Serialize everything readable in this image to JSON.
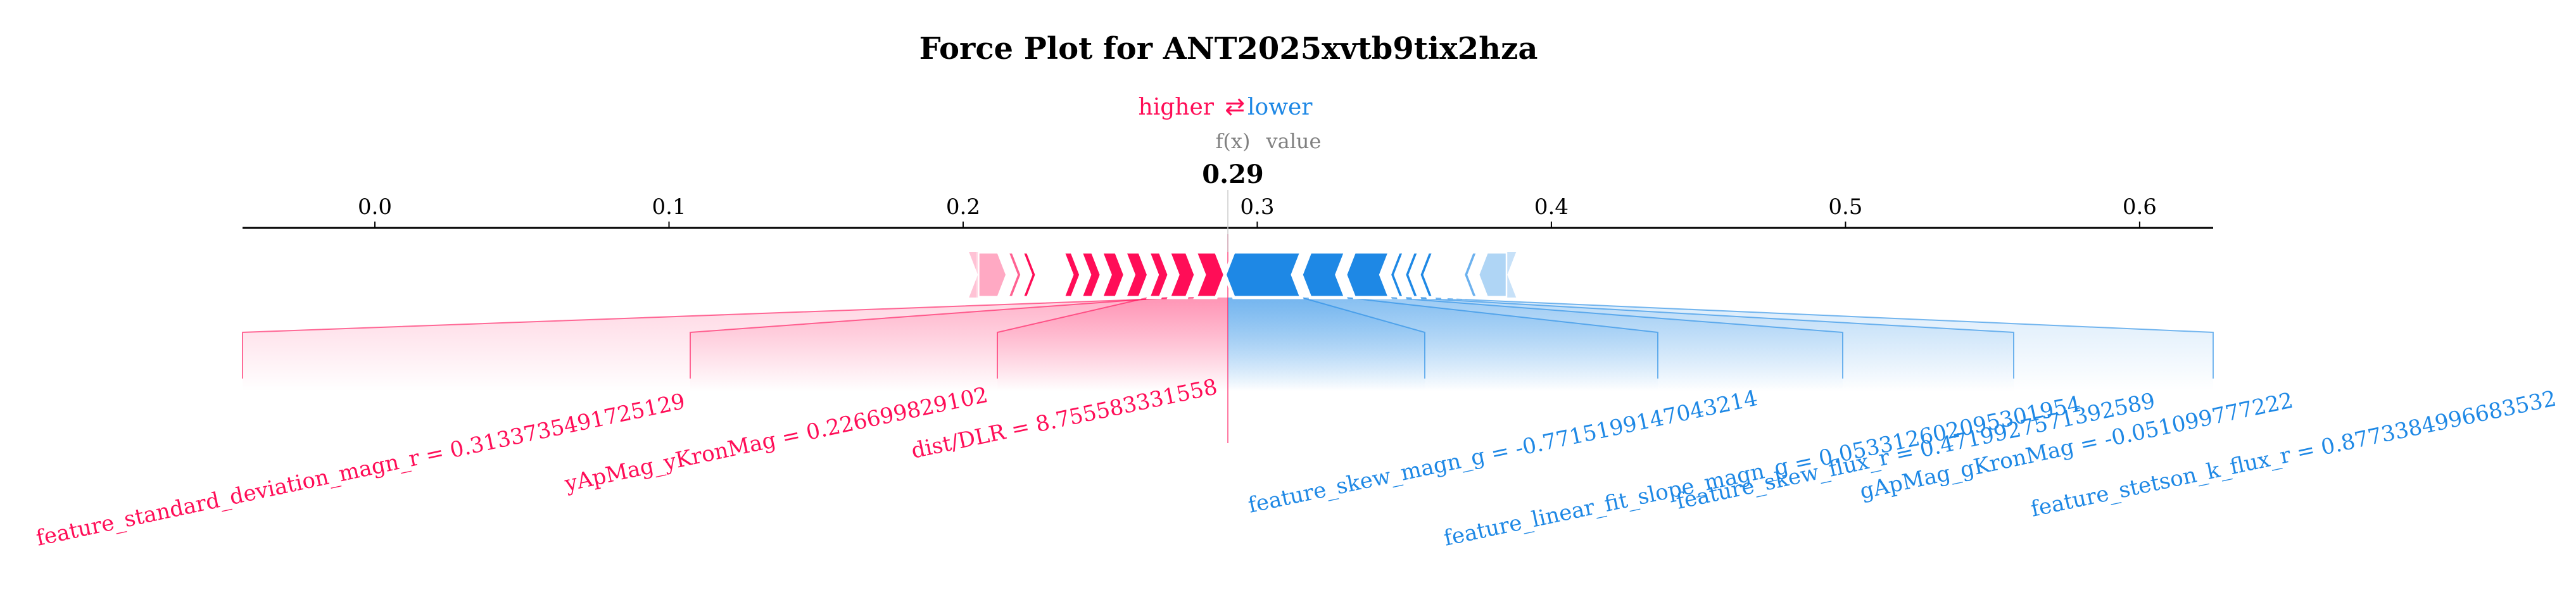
{
  "chart_data": {
    "type": "force",
    "title": "Force Plot for ANT2025xvtb9tix2hza",
    "legend": {
      "higher": "higher",
      "lower": "lower",
      "arrow": "⇄"
    },
    "fx_label": "f(x)",
    "value_label": "value",
    "output_value": 0.29,
    "output_value_text": "0.29",
    "xlim": [
      -0.045,
      0.625
    ],
    "ticks": [
      {
        "value": 0.0,
        "label": "0.0"
      },
      {
        "value": 0.1,
        "label": "0.1"
      },
      {
        "value": 0.2,
        "label": "0.2"
      },
      {
        "value": 0.3,
        "label": "0.3"
      },
      {
        "value": 0.4,
        "label": "0.4"
      },
      {
        "value": 0.5,
        "label": "0.5"
      },
      {
        "value": 0.6,
        "label": "0.6"
      }
    ],
    "positive_segment_bounds": [
      0.205,
      0.215,
      0.22,
      0.225,
      0.228,
      0.231,
      0.234,
      0.24,
      0.247,
      0.255,
      0.263,
      0.27,
      0.279,
      0.289
    ],
    "negative_segment_bounds": [
      0.289,
      0.315,
      0.33,
      0.345,
      0.35,
      0.355,
      0.36,
      0.364,
      0.367,
      0.37,
      0.375,
      0.385
    ],
    "positive_labeled": [
      {
        "label": "feature_standard_deviation_magn_r = 0.3133735491725129",
        "start": 0.279,
        "end": 0.289
      },
      {
        "label": "yApMag_yKronMag = 0.226699829102",
        "start": 0.27,
        "end": 0.279
      },
      {
        "label": "dist/DLR = 8.755583331558",
        "start": 0.263,
        "end": 0.27
      }
    ],
    "negative_labeled": [
      {
        "label": "feature_skew_magn_g = -0.7715199147043214",
        "start": 0.289,
        "end": 0.315
      },
      {
        "label": "feature_linear_fit_slope_magn_g = 0.053312602095301954",
        "start": 0.315,
        "end": 0.33
      },
      {
        "label": "feature_skew_flux_r = 0.4719927571392589",
        "start": 0.33,
        "end": 0.345
      },
      {
        "label": "gApMag_gKronMag = -0.051099777222",
        "start": 0.345,
        "end": 0.35
      },
      {
        "label": "feature_stetson_k_flux_r = 0.8773384996683532",
        "start": 0.35,
        "end": 0.355
      }
    ],
    "colors": {
      "positive": "#ff0d57",
      "negative": "#1e88e5",
      "axis": "#000000",
      "fx": "#808080"
    }
  }
}
